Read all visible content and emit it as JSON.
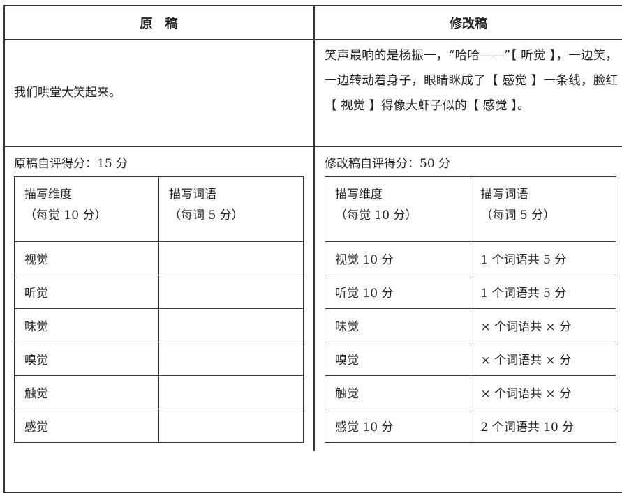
{
  "original": {
    "title": "原　稿",
    "text": "我们哄堂大笑起来。",
    "score": "原稿自评得分：15 分",
    "table": {
      "headers": [
        "描写维度\n（每觉 10 分）",
        "描写词语\n（每词 5 分）"
      ],
      "rows": [
        [
          "视觉",
          ""
        ],
        [
          "听觉",
          ""
        ],
        [
          "味觉",
          ""
        ],
        [
          "嗅觉",
          ""
        ],
        [
          "触觉",
          ""
        ],
        [
          "感觉",
          ""
        ]
      ]
    }
  },
  "revised": {
    "title": "修改稿",
    "text": "笑声最响的是杨振一，“哈哈——”【 听觉 】，一边笑，一边转动着身子，眼睛眯成了【 感觉 】一条线，脸红【 视觉 】得像大虾子似的【 感觉 】。",
    "score": "修改稿自评得分：50 分",
    "table": {
      "headers": [
        "描写维度\n（每觉 10 分）",
        "描写词语\n（每词 5 分）"
      ],
      "rows": [
        [
          "视觉 10 分",
          "1 个词语共 5 分"
        ],
        [
          "听觉 10 分",
          "1 个词语共 5 分"
        ],
        [
          "味觉",
          "× 个词语共 × 分"
        ],
        [
          "嗅觉",
          "× 个词语共 × 分"
        ],
        [
          "触觉",
          "× 个词语共 × 分"
        ],
        [
          "感觉 10 分",
          "2 个词语共 10 分"
        ]
      ]
    }
  }
}
